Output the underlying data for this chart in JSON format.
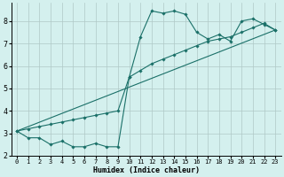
{
  "xlabel": "Humidex (Indice chaleur)",
  "bg_color": "#d4f0ee",
  "grid_color": "#b0c8c6",
  "line_color": "#1a7068",
  "xlim": [
    -0.5,
    23.5
  ],
  "ylim": [
    2.0,
    8.8
  ],
  "yticks": [
    2,
    3,
    4,
    5,
    6,
    7,
    8
  ],
  "xticks": [
    0,
    1,
    2,
    3,
    4,
    5,
    6,
    7,
    8,
    9,
    10,
    11,
    12,
    13,
    14,
    15,
    16,
    17,
    18,
    19,
    20,
    21,
    22,
    23
  ],
  "line1_x": [
    0,
    1,
    2,
    3,
    4,
    5,
    6,
    7,
    8,
    9,
    10,
    11,
    12,
    13,
    14,
    15,
    16,
    17,
    18,
    19,
    20,
    21,
    22,
    23
  ],
  "line1_y": [
    3.1,
    2.8,
    2.8,
    2.5,
    2.65,
    2.4,
    2.4,
    2.55,
    2.4,
    2.4,
    5.5,
    7.3,
    8.45,
    8.35,
    8.45,
    8.3,
    7.5,
    7.2,
    7.4,
    7.1,
    8.0,
    8.1,
    7.85,
    7.6
  ],
  "line2_x": [
    0,
    1,
    2,
    3,
    4,
    5,
    6,
    7,
    8,
    9,
    10,
    11,
    12,
    13,
    14,
    15,
    16,
    17,
    18,
    19,
    20,
    21,
    22,
    23
  ],
  "line2_y": [
    3.1,
    3.2,
    3.3,
    3.4,
    3.5,
    3.6,
    3.7,
    3.8,
    3.9,
    4.0,
    5.5,
    5.8,
    6.1,
    6.3,
    6.5,
    6.7,
    6.9,
    7.1,
    7.2,
    7.3,
    7.5,
    7.7,
    7.9,
    7.6
  ],
  "line3_x": [
    0,
    23
  ],
  "line3_y": [
    3.1,
    7.6
  ]
}
